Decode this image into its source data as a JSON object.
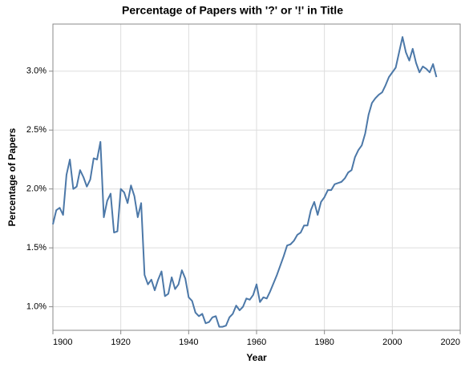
{
  "chart_data": {
    "type": "line",
    "title": "Percentage of Papers with '?' or '!' in Title",
    "x_label": "Year",
    "y_label": "Percentage of Papers",
    "x": [
      1900,
      1901,
      1902,
      1903,
      1904,
      1905,
      1906,
      1907,
      1908,
      1909,
      1910,
      1911,
      1912,
      1913,
      1914,
      1915,
      1916,
      1917,
      1918,
      1919,
      1920,
      1921,
      1922,
      1923,
      1924,
      1925,
      1926,
      1927,
      1928,
      1929,
      1930,
      1931,
      1932,
      1933,
      1934,
      1935,
      1936,
      1937,
      1938,
      1939,
      1940,
      1941,
      1942,
      1943,
      1944,
      1945,
      1946,
      1947,
      1948,
      1949,
      1950,
      1951,
      1952,
      1953,
      1954,
      1955,
      1956,
      1957,
      1958,
      1959,
      1960,
      1961,
      1962,
      1963,
      1964,
      1965,
      1966,
      1967,
      1968,
      1969,
      1970,
      1971,
      1972,
      1973,
      1974,
      1975,
      1976,
      1977,
      1978,
      1979,
      1980,
      1981,
      1982,
      1983,
      1984,
      1985,
      1986,
      1987,
      1988,
      1989,
      1990,
      1991,
      1992,
      1993,
      1994,
      1995,
      1996,
      1997,
      1998,
      1999,
      2000,
      2001,
      2002,
      2003,
      2004,
      2005,
      2006,
      2007,
      2008,
      2009,
      2010,
      2011,
      2012,
      2013
    ],
    "series": [
      {
        "name": "Percentage of Papers",
        "color": "#4c78a8",
        "values": [
          1.7,
          1.82,
          1.84,
          1.78,
          2.12,
          2.25,
          2.0,
          2.02,
          2.16,
          2.1,
          2.02,
          2.08,
          2.26,
          2.25,
          2.4,
          1.76,
          1.9,
          1.96,
          1.63,
          1.64,
          2.0,
          1.97,
          1.88,
          2.03,
          1.94,
          1.76,
          1.88,
          1.27,
          1.19,
          1.23,
          1.14,
          1.23,
          1.3,
          1.09,
          1.11,
          1.25,
          1.15,
          1.19,
          1.31,
          1.24,
          1.08,
          1.05,
          0.95,
          0.92,
          0.94,
          0.86,
          0.87,
          0.91,
          0.92,
          0.83,
          0.83,
          0.84,
          0.91,
          0.94,
          1.01,
          0.97,
          1.0,
          1.07,
          1.06,
          1.1,
          1.19,
          1.04,
          1.08,
          1.07,
          1.13,
          1.2,
          1.27,
          1.35,
          1.43,
          1.52,
          1.53,
          1.56,
          1.61,
          1.63,
          1.69,
          1.69,
          1.82,
          1.89,
          1.78,
          1.89,
          1.93,
          1.99,
          1.99,
          2.04,
          2.05,
          2.06,
          2.09,
          2.14,
          2.16,
          2.27,
          2.33,
          2.37,
          2.47,
          2.63,
          2.73,
          2.77,
          2.8,
          2.82,
          2.88,
          2.95,
          2.99,
          3.03,
          3.16,
          3.29,
          3.16,
          3.09,
          3.19,
          3.07,
          2.99,
          3.04,
          3.02,
          2.99,
          3.06,
          2.95
        ]
      }
    ],
    "xlim": [
      1900,
      2020
    ],
    "xticks": [
      1900,
      1920,
      1940,
      1960,
      1980,
      2000,
      2020
    ],
    "ylim": [
      0.8,
      3.4
    ],
    "yticks": [
      {
        "value": 1.0,
        "label": "1.0%"
      },
      {
        "value": 1.5,
        "label": "1.5%"
      },
      {
        "value": 2.0,
        "label": "2.0%"
      },
      {
        "value": 2.5,
        "label": "2.5%"
      },
      {
        "value": 3.0,
        "label": "3.0%"
      }
    ],
    "grid": true
  }
}
